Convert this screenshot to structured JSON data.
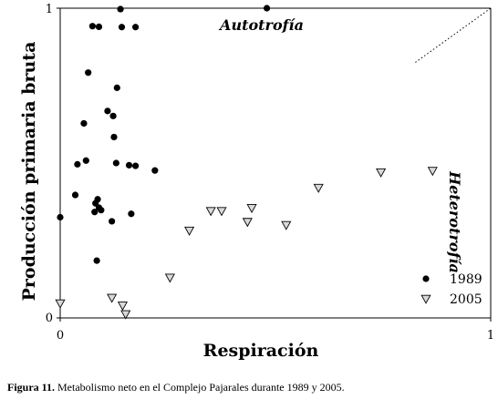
{
  "caption": {
    "label": "Figura 11.",
    "text": "Metabolismo neto en el Complejo Pajarales durante 1989 y 2005."
  },
  "chart_data": {
    "type": "scatter",
    "xlabel": "Respiración",
    "ylabel": "Producción primaria bruta",
    "xlim": [
      0,
      1
    ],
    "ylim": [
      0,
      1
    ],
    "x_ticks": [
      "0",
      "1"
    ],
    "y_ticks": [
      "0",
      "1"
    ],
    "grid": false,
    "legend_position": "bottom-right",
    "annotations": [
      {
        "text": "Autotrofía",
        "placement": "top"
      },
      {
        "text": "Heterotrofía",
        "placement": "right"
      }
    ],
    "reference_line": {
      "style": "dotted",
      "from": [
        0,
        0
      ],
      "to": [
        1,
        1
      ]
    },
    "series": [
      {
        "name": "1989",
        "marker": "filled-circle",
        "color": "#000000",
        "points": [
          [
            0.0,
            0.325
          ],
          [
            0.035,
            0.397
          ],
          [
            0.04,
            0.496
          ],
          [
            0.055,
            0.628
          ],
          [
            0.06,
            0.508
          ],
          [
            0.065,
            0.792
          ],
          [
            0.075,
            0.942
          ],
          [
            0.08,
            0.342
          ],
          [
            0.082,
            0.37
          ],
          [
            0.085,
            0.185
          ],
          [
            0.087,
            0.383
          ],
          [
            0.09,
            0.94
          ],
          [
            0.09,
            0.356
          ],
          [
            0.095,
            0.348
          ],
          [
            0.11,
            0.668
          ],
          [
            0.12,
            0.312
          ],
          [
            0.123,
            0.652
          ],
          [
            0.125,
            0.584
          ],
          [
            0.13,
            0.5
          ],
          [
            0.132,
            0.743
          ],
          [
            0.14,
            0.997
          ],
          [
            0.143,
            0.939
          ],
          [
            0.16,
            0.493
          ],
          [
            0.165,
            0.336
          ],
          [
            0.175,
            0.491
          ],
          [
            0.175,
            0.939
          ],
          [
            0.22,
            0.476
          ],
          [
            0.48,
            1.0
          ]
        ]
      },
      {
        "name": "2005",
        "marker": "open-triangle-down",
        "color": "#000000",
        "points": [
          [
            0.0,
            0.047
          ],
          [
            0.12,
            0.065
          ],
          [
            0.145,
            0.04
          ],
          [
            0.152,
            0.012
          ],
          [
            0.255,
            0.13
          ],
          [
            0.3,
            0.282
          ],
          [
            0.35,
            0.345
          ],
          [
            0.375,
            0.345
          ],
          [
            0.435,
            0.31
          ],
          [
            0.445,
            0.355
          ],
          [
            0.525,
            0.3
          ],
          [
            0.6,
            0.42
          ],
          [
            0.745,
            0.47
          ],
          [
            0.865,
            0.475
          ]
        ]
      }
    ]
  }
}
